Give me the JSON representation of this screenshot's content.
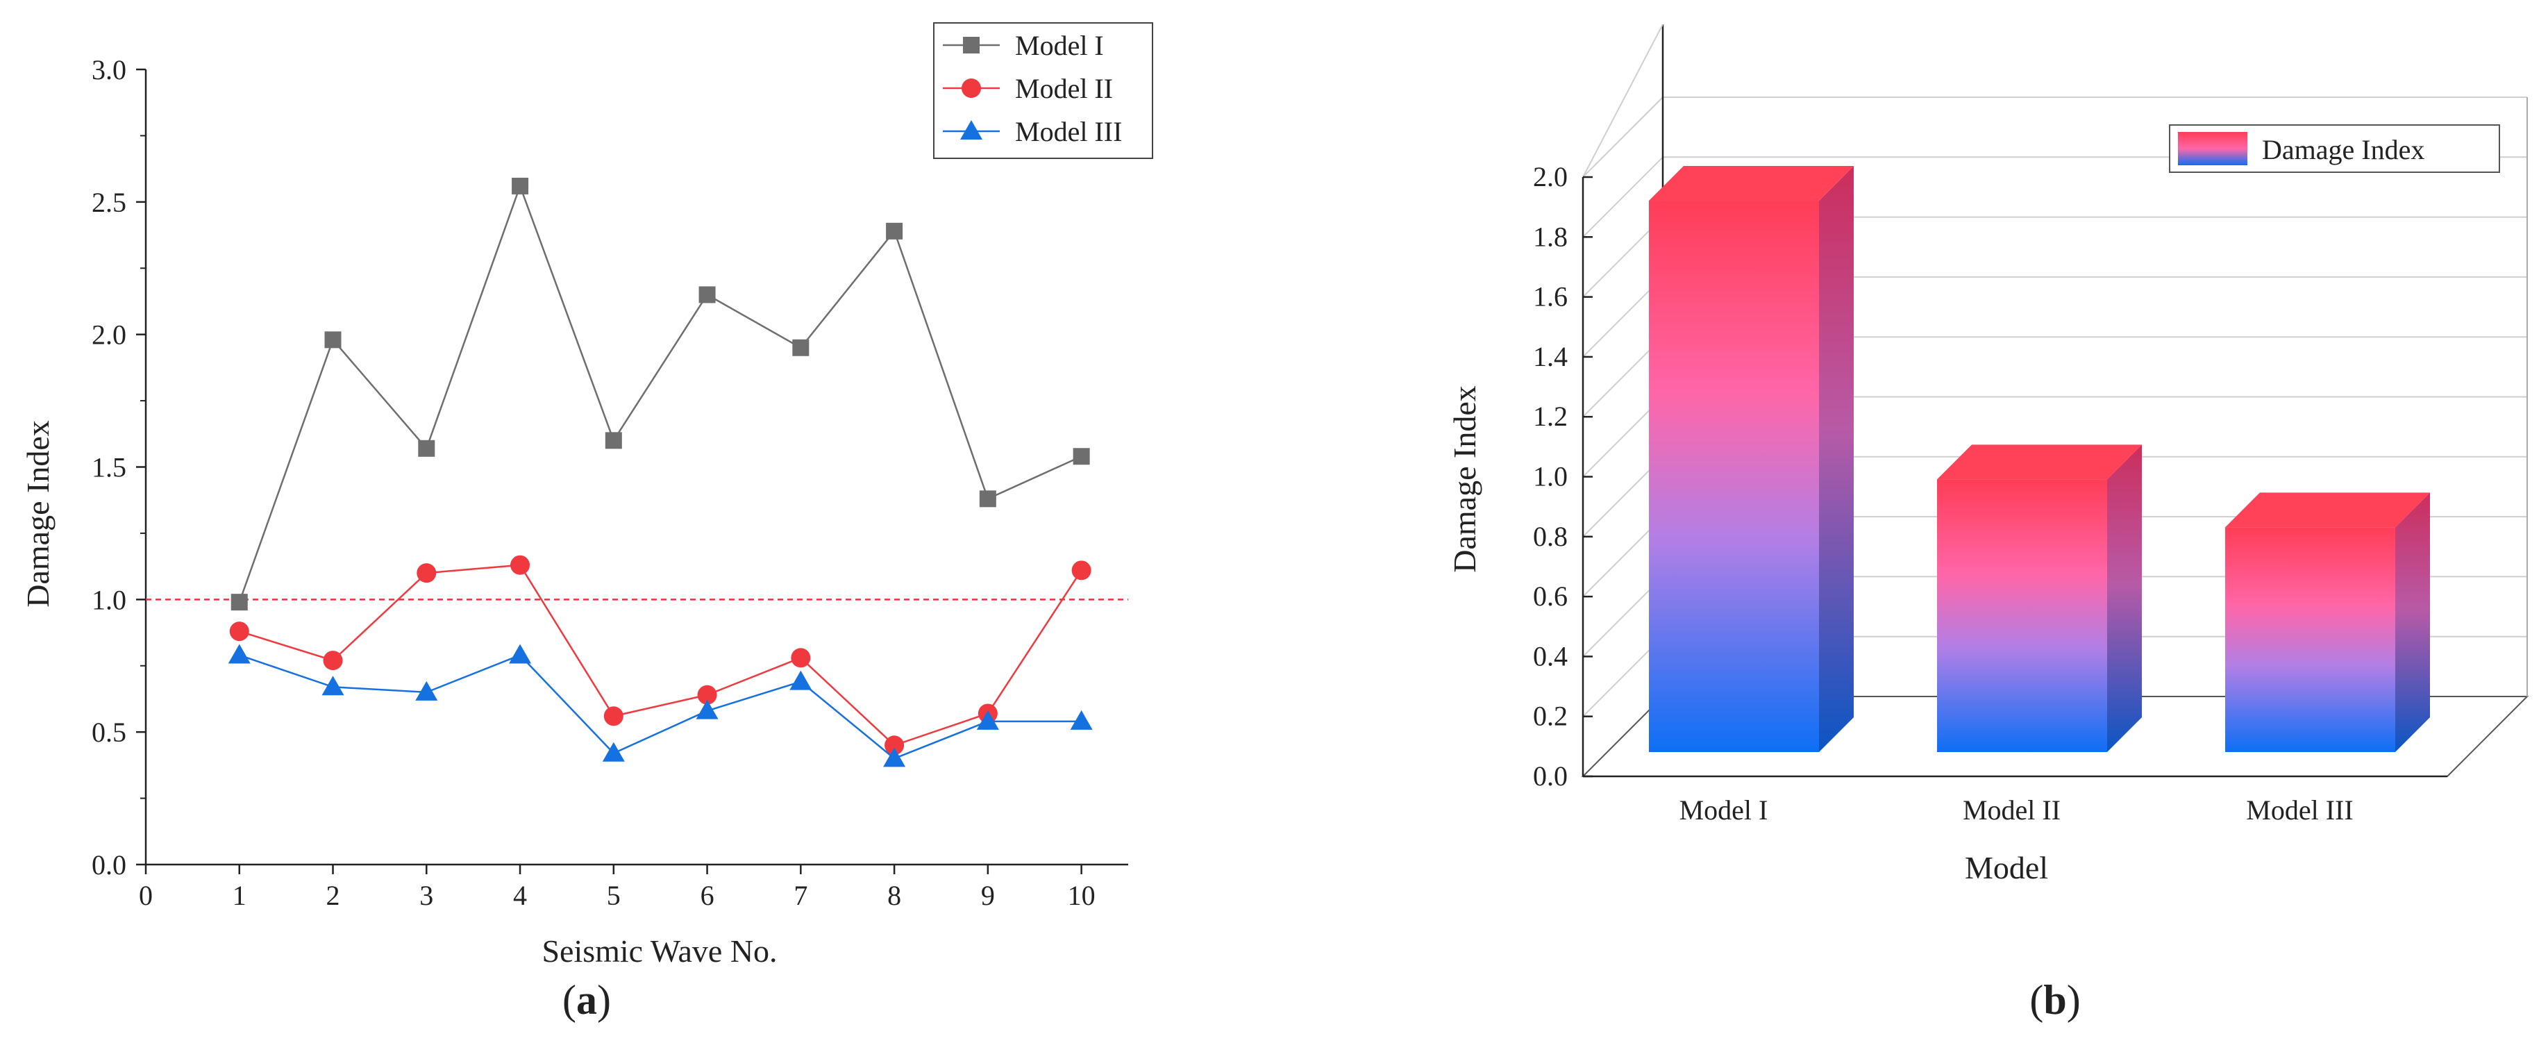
{
  "chart_data": [
    {
      "panel_label": "(a)",
      "panel_letter": "a",
      "type": "line",
      "xlabel": "Seismic Wave No.",
      "ylabel": "Damage Index",
      "x": [
        1,
        2,
        3,
        4,
        5,
        6,
        7,
        8,
        9,
        10
      ],
      "xlim": [
        0,
        10.5
      ],
      "ylim": [
        0,
        3.0
      ],
      "xticks": [
        "0",
        "1",
        "2",
        "3",
        "4",
        "5",
        "6",
        "7",
        "8",
        "9",
        "10"
      ],
      "yticks": [
        "0.0",
        "0.5",
        "1.0",
        "1.5",
        "2.0",
        "2.5",
        "3.0"
      ],
      "reference_line": {
        "y": 1.0,
        "color": "#e8343a",
        "style": "dashed"
      },
      "legend_position": "top-right",
      "series": [
        {
          "name": "Model I",
          "color": "#6e6e6e",
          "marker": "square",
          "values": [
            0.99,
            1.98,
            1.57,
            2.56,
            1.6,
            2.15,
            1.95,
            2.39,
            1.38,
            1.54
          ]
        },
        {
          "name": "Model II",
          "color": "#f0393f",
          "marker": "circle",
          "values": [
            0.88,
            0.77,
            1.1,
            1.13,
            0.56,
            0.64,
            0.78,
            0.45,
            0.57,
            1.11
          ]
        },
        {
          "name": "Model III",
          "color": "#1570e0",
          "marker": "triangle",
          "values": [
            0.79,
            0.67,
            0.65,
            0.79,
            0.42,
            0.58,
            0.69,
            0.4,
            0.54,
            0.54
          ]
        }
      ]
    },
    {
      "panel_label": "(b)",
      "panel_letter": "b",
      "type": "bar",
      "xlabel": "Model",
      "ylabel": "Damage Index",
      "categories": [
        "Model I",
        "Model II",
        "Model III"
      ],
      "values": [
        1.84,
        0.91,
        0.75
      ],
      "ylim": [
        0,
        2.0
      ],
      "yticks": [
        "0.0",
        "0.2",
        "0.4",
        "0.6",
        "0.8",
        "1.0",
        "1.2",
        "1.4",
        "1.6",
        "1.8",
        "2.0"
      ],
      "legend": "Damage Index",
      "legend_position": "top-right",
      "colors": {
        "top": "#ff3d57",
        "mid": "#ff66a8",
        "bottom": "#0d6ff5",
        "side_top": "#cc2e5c",
        "side_bottom": "#0a55c4"
      }
    }
  ]
}
